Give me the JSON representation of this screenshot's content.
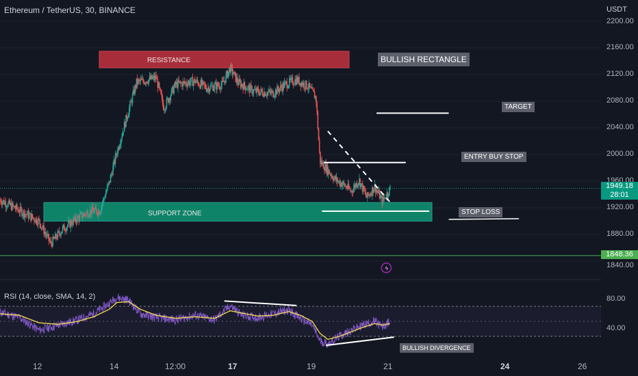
{
  "header": {
    "symbol": "Ethereum / TetherUS, 30, BINANCE",
    "currency": "USDT"
  },
  "price_axis": {
    "ticks": [
      "2200.00",
      "2160.00",
      "2120.00",
      "2080.00",
      "2040.00",
      "2000.00",
      "1960.00",
      "1920.00",
      "1880.00",
      "1840.00"
    ],
    "last_price": "1949.18",
    "countdown": "28:01",
    "level_price": "1848.36",
    "colors": {
      "last": "#089981",
      "level": "#4caf50"
    }
  },
  "time_axis": {
    "ticks": [
      "12",
      "14",
      "12:00",
      "17",
      "19",
      "21",
      "24",
      "26"
    ]
  },
  "annotations": {
    "resistance": "RESISTANCE",
    "support": "SUPPORT ZONE",
    "pattern": "BULLISH RECTANGLE",
    "target": "TARGET",
    "entry": "ENTRY BUY STOP",
    "stop": "STOP LOSS",
    "divergence": "BULLISH DIVERGENCE",
    "colors": {
      "resistance": "#c2313f",
      "support": "#0f8f70"
    }
  },
  "rsi": {
    "title": "RSI (14, close, SMA, 14, 2)",
    "ticks": [
      "80.00",
      "40.00"
    ],
    "colors": {
      "rsi": "#7e57c2",
      "sma": "#f7e04b"
    }
  },
  "chart_data": {
    "type": "candlestick",
    "symbol": "ETHUSDT",
    "interval": "30",
    "ylim": [
      1835,
      2205
    ],
    "path_x_day": [
      11.0,
      12.0,
      12.3,
      12.6,
      13.0,
      13.3,
      13.55,
      13.8,
      14.0,
      14.5,
      15.0,
      15.2,
      15.5,
      16.0,
      16.3,
      16.7,
      16.9,
      17.1,
      17.5,
      18.0,
      18.3,
      18.6,
      18.9,
      19.1,
      19.2,
      19.35,
      19.6,
      19.8,
      20.0,
      20.2,
      20.4,
      20.6,
      20.8,
      21.0
    ],
    "path_close": [
      1932,
      1900,
      1866,
      1888,
      1905,
      1915,
      1915,
      1958,
      2005,
      2108,
      2115,
      2070,
      2105,
      2110,
      2100,
      2105,
      2130,
      2108,
      2095,
      2092,
      2105,
      2112,
      2102,
      2085,
      1990,
      1980,
      1962,
      1955,
      1945,
      1962,
      1935,
      1952,
      1930,
      1949
    ],
    "levels": {
      "resistance": [
        2130,
        2155
      ],
      "support": [
        1900,
        1928
      ],
      "target": 2062,
      "entry_buy_stop": 1988,
      "stop_loss": 1915,
      "horizontal_line": 1848.36,
      "last": 1949.18
    },
    "rsi_ylim": [
      10,
      95
    ],
    "rsi_bands": [
      70,
      30
    ],
    "rsi_x_day": [
      11.0,
      11.5,
      12.0,
      12.5,
      13.0,
      13.4,
      13.8,
      14.0,
      14.3,
      14.6,
      15.0,
      15.5,
      16.0,
      16.5,
      16.9,
      17.2,
      17.6,
      18.0,
      18.4,
      18.7,
      19.0,
      19.2,
      19.4,
      19.7,
      20.0,
      20.3,
      20.6,
      20.8,
      21.0
    ],
    "rsi_values": [
      62,
      55,
      38,
      45,
      52,
      60,
      74,
      82,
      78,
      60,
      55,
      52,
      58,
      52,
      71,
      58,
      55,
      60,
      65,
      54,
      45,
      24,
      20,
      30,
      38,
      45,
      50,
      42,
      50
    ],
    "rsi_sma": [
      60,
      58,
      48,
      46,
      50,
      56,
      66,
      75,
      76,
      66,
      58,
      54,
      56,
      54,
      64,
      61,
      57,
      58,
      63,
      58,
      50,
      34,
      26,
      30,
      36,
      42,
      47,
      45,
      47
    ]
  }
}
